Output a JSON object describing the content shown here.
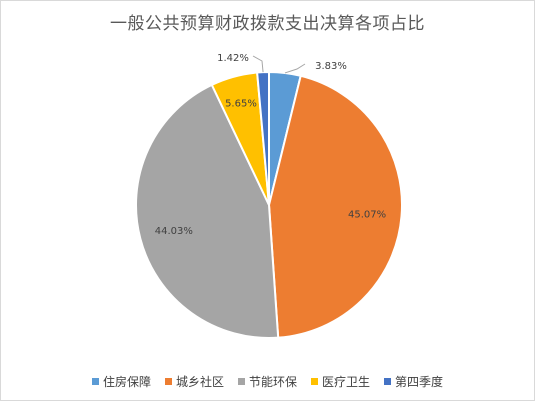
{
  "chart_data": {
    "type": "pie",
    "title": "一般公共预算财政拨款支出决算各项占比",
    "legend_position": "bottom",
    "slices": [
      {
        "name": "住房保障",
        "value": 3.83,
        "label": "3.83%",
        "color": "#5b9bd5"
      },
      {
        "name": "城乡社区",
        "value": 45.07,
        "label": "45.07%",
        "color": "#ed7d31"
      },
      {
        "name": "节能环保",
        "value": 44.03,
        "label": "44.03%",
        "color": "#a5a5a5"
      },
      {
        "name": "医疗卫生",
        "value": 5.65,
        "label": "5.65%",
        "color": "#ffc000"
      },
      {
        "name": "第四季度",
        "value": 1.42,
        "label": "1.42%",
        "color": "#4472c4"
      }
    ]
  }
}
